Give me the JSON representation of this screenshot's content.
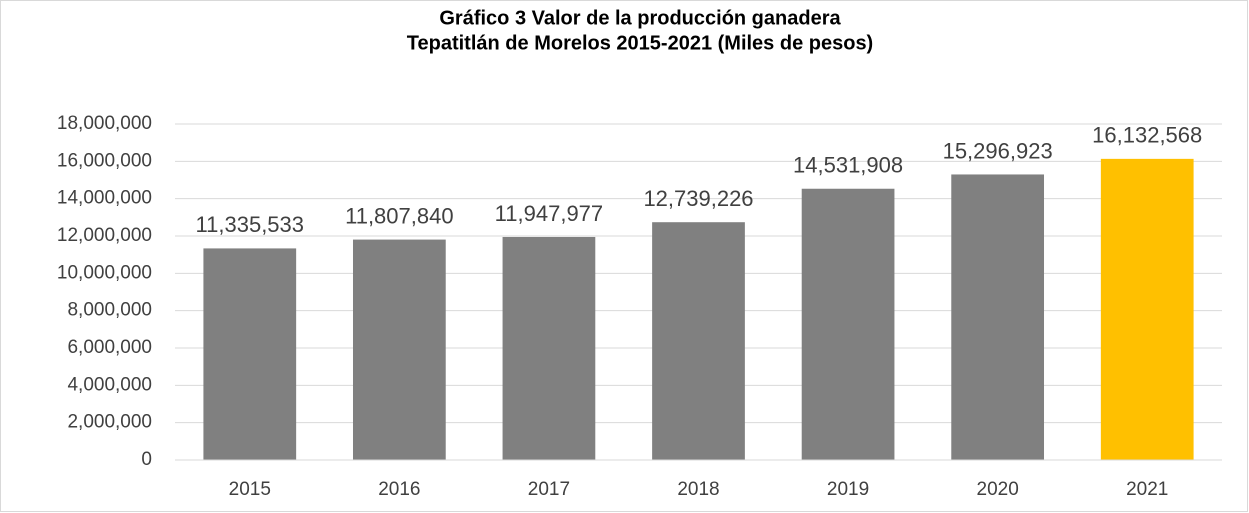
{
  "chart_data": {
    "type": "bar",
    "title": [
      "Gráfico 3 Valor de la producción ganadera",
      "Tepatitlán de Morelos 2015-2021 (Miles de pesos)"
    ],
    "categories": [
      "2015",
      "2016",
      "2017",
      "2018",
      "2019",
      "2020",
      "2021"
    ],
    "values": [
      11335533,
      11807840,
      11947977,
      12739226,
      14531908,
      15296923,
      16132568
    ],
    "value_labels": [
      "11,335,533",
      "11,807,840",
      "11,947,977",
      "12,739,226",
      "14,531,908",
      "15,296,923",
      "16,132,568"
    ],
    "colors": [
      "#808080",
      "#808080",
      "#808080",
      "#808080",
      "#808080",
      "#808080",
      "#ffc000"
    ],
    "ylim": [
      0,
      18000000
    ],
    "yticks": [
      0,
      {
        "value": 2000000,
        "label": "2,000,000"
      },
      {
        "value": 4000000,
        "label": "4,000,000"
      },
      {
        "value": 6000000,
        "label": "6,000,000"
      },
      {
        "value": 8000000,
        "label": "8,000,000"
      },
      {
        "value": 10000000,
        "label": "10,000,000"
      },
      {
        "value": 12000000,
        "label": "12,000,000"
      },
      {
        "value": 14000000,
        "label": "14,000,000"
      },
      {
        "value": 16000000,
        "label": "16,000,000"
      },
      {
        "value": 18000000,
        "label": "18,000,000"
      }
    ],
    "grid": true
  }
}
